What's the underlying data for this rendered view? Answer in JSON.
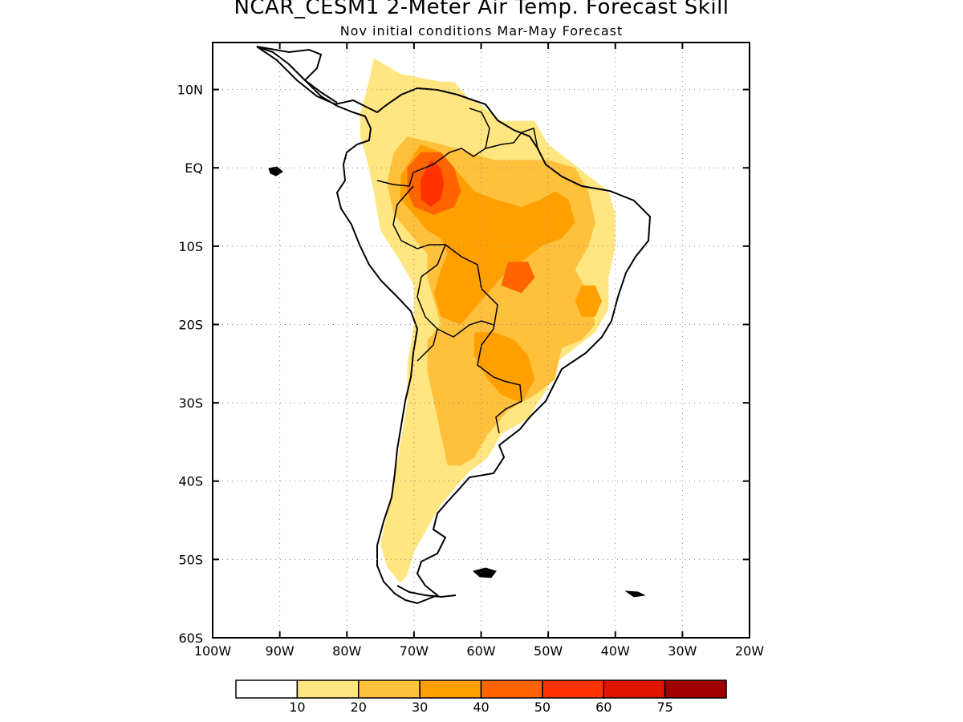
{
  "title": "NCAR_CESM1 2-Meter Air Temp. Forecast Skill",
  "subtitle": "Nov initial conditions  Mar-May Forecast",
  "map": {
    "lon_range": [
      -100,
      -20
    ],
    "lat_range": [
      -60,
      16
    ],
    "x_ticks": [
      {
        "value": -100,
        "label": "100W"
      },
      {
        "value": -90,
        "label": "90W"
      },
      {
        "value": -80,
        "label": "80W"
      },
      {
        "value": -70,
        "label": "70W"
      },
      {
        "value": -60,
        "label": "60W"
      },
      {
        "value": -50,
        "label": "50W"
      },
      {
        "value": -40,
        "label": "40W"
      },
      {
        "value": -30,
        "label": "30W"
      },
      {
        "value": -20,
        "label": "20W"
      }
    ],
    "y_ticks": [
      {
        "value": 10,
        "label": "10N"
      },
      {
        "value": 0,
        "label": "EQ"
      },
      {
        "value": -10,
        "label": "10S"
      },
      {
        "value": -20,
        "label": "20S"
      },
      {
        "value": -30,
        "label": "30S"
      },
      {
        "value": -40,
        "label": "40S"
      },
      {
        "value": -50,
        "label": "50S"
      },
      {
        "value": -60,
        "label": "60S"
      }
    ],
    "grid": "dotted"
  },
  "legend": {
    "colors": [
      "#ffffff",
      "#ffe680",
      "#ffc03c",
      "#ffa000",
      "#ff6400",
      "#ff3200",
      "#e11400",
      "#a00000"
    ],
    "labels": [
      "10",
      "20",
      "30",
      "40",
      "50",
      "60",
      "75"
    ]
  },
  "skill_regions": [
    {
      "level": 1,
      "points": [
        [
          -76,
          14
        ],
        [
          -72,
          12
        ],
        [
          -66,
          11
        ],
        [
          -64,
          11
        ],
        [
          -62,
          9
        ],
        [
          -60,
          8
        ],
        [
          -57,
          6
        ],
        [
          -52,
          6
        ],
        [
          -50,
          3
        ],
        [
          -47,
          1
        ],
        [
          -44,
          -1
        ],
        [
          -41,
          -3
        ],
        [
          -40,
          -6
        ],
        [
          -40,
          -10
        ],
        [
          -41,
          -14
        ],
        [
          -41,
          -18
        ],
        [
          -43,
          -21
        ],
        [
          -46,
          -23
        ],
        [
          -49,
          -25
        ],
        [
          -50,
          -28
        ],
        [
          -53,
          -32
        ],
        [
          -57,
          -34
        ],
        [
          -59,
          -37
        ],
        [
          -62,
          -39
        ],
        [
          -64,
          -41
        ],
        [
          -66,
          -43
        ],
        [
          -68,
          -46
        ],
        [
          -70,
          -49
        ],
        [
          -71,
          -52
        ],
        [
          -72,
          -53
        ],
        [
          -74,
          -51
        ],
        [
          -75,
          -48
        ],
        [
          -74,
          -44
        ],
        [
          -73,
          -40
        ],
        [
          -72,
          -35
        ],
        [
          -71,
          -30
        ],
        [
          -71,
          -25
        ],
        [
          -70,
          -20
        ],
        [
          -70,
          -15
        ],
        [
          -72,
          -12
        ],
        [
          -75,
          -8
        ],
        [
          -76,
          -3
        ],
        [
          -77,
          1
        ],
        [
          -78,
          4
        ],
        [
          -78,
          7
        ],
        [
          -77,
          10
        ]
      ]
    },
    {
      "level": 2,
      "points": [
        [
          -71,
          4
        ],
        [
          -66,
          3
        ],
        [
          -62,
          2
        ],
        [
          -58,
          1
        ],
        [
          -54,
          1
        ],
        [
          -50,
          1
        ],
        [
          -46,
          0
        ],
        [
          -44,
          -3
        ],
        [
          -43,
          -7
        ],
        [
          -44,
          -10
        ],
        [
          -46,
          -13
        ],
        [
          -44,
          -16
        ],
        [
          -43,
          -20
        ],
        [
          -45,
          -22
        ],
        [
          -48,
          -23
        ],
        [
          -49,
          -27
        ],
        [
          -52,
          -29
        ],
        [
          -56,
          -31
        ],
        [
          -59,
          -34
        ],
        [
          -61,
          -37
        ],
        [
          -63,
          -38
        ],
        [
          -65,
          -38
        ],
        [
          -66,
          -34
        ],
        [
          -67,
          -30
        ],
        [
          -68,
          -26
        ],
        [
          -68,
          -22
        ],
        [
          -66,
          -20
        ],
        [
          -67,
          -17
        ],
        [
          -68,
          -14
        ],
        [
          -68,
          -11
        ],
        [
          -70,
          -9
        ],
        [
          -73,
          -6
        ],
        [
          -74,
          -2
        ],
        [
          -73,
          2
        ]
      ]
    },
    {
      "level": 3,
      "points": [
        [
          -69,
          3
        ],
        [
          -66,
          2
        ],
        [
          -63,
          -1
        ],
        [
          -61,
          -3
        ],
        [
          -58,
          -4
        ],
        [
          -54,
          -5
        ],
        [
          -51,
          -4
        ],
        [
          -49,
          -3
        ],
        [
          -47,
          -4
        ],
        [
          -46,
          -7
        ],
        [
          -48,
          -9
        ],
        [
          -51,
          -10
        ],
        [
          -54,
          -12
        ],
        [
          -57,
          -14
        ],
        [
          -59,
          -16
        ],
        [
          -61,
          -18
        ],
        [
          -63,
          -20
        ],
        [
          -66,
          -19
        ],
        [
          -67,
          -16
        ],
        [
          -66,
          -13
        ],
        [
          -65,
          -11
        ],
        [
          -66,
          -9
        ],
        [
          -68,
          -8
        ],
        [
          -70,
          -6
        ],
        [
          -72,
          -4
        ],
        [
          -72,
          -1
        ]
      ]
    },
    {
      "level": 3,
      "points": [
        [
          -61,
          -21
        ],
        [
          -58,
          -21
        ],
        [
          -55,
          -22
        ],
        [
          -53,
          -24
        ],
        [
          -52,
          -27
        ],
        [
          -54,
          -30
        ],
        [
          -57,
          -29
        ],
        [
          -59,
          -27
        ],
        [
          -61,
          -24
        ]
      ]
    },
    {
      "level": 3,
      "points": [
        [
          -45,
          -15
        ],
        [
          -43,
          -15
        ],
        [
          -42,
          -17
        ],
        [
          -43,
          -19
        ],
        [
          -45,
          -19
        ],
        [
          -46,
          -17
        ]
      ]
    },
    {
      "level": 4,
      "points": [
        [
          -69,
          2
        ],
        [
          -66,
          2
        ],
        [
          -64,
          0
        ],
        [
          -63,
          -3
        ],
        [
          -64,
          -5
        ],
        [
          -67,
          -6
        ],
        [
          -70,
          -5
        ],
        [
          -71,
          -3
        ],
        [
          -71,
          0
        ]
      ]
    },
    {
      "level": 4,
      "points": [
        [
          -56,
          -12
        ],
        [
          -53,
          -12
        ],
        [
          -52,
          -14
        ],
        [
          -54,
          -16
        ],
        [
          -57,
          -15
        ]
      ]
    },
    {
      "level": 5,
      "points": [
        [
          -67.5,
          1
        ],
        [
          -66,
          0
        ],
        [
          -65.5,
          -2
        ],
        [
          -66,
          -4
        ],
        [
          -67.5,
          -5
        ],
        [
          -69,
          -4
        ],
        [
          -69,
          -1.5
        ]
      ]
    }
  ]
}
